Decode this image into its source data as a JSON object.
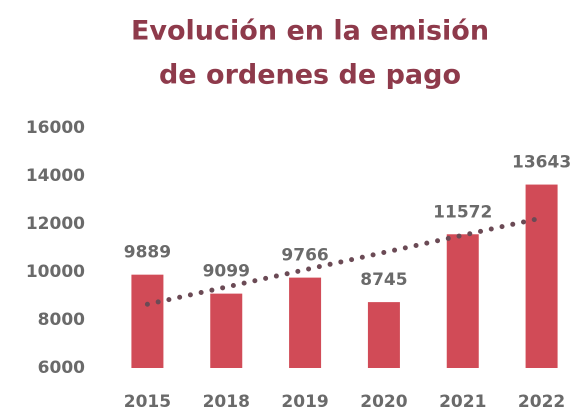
{
  "chart_data": {
    "type": "bar",
    "title": [
      "Evolución en la emisión",
      "de ordenes de pago"
    ],
    "categories": [
      "2015",
      "2018",
      "2019",
      "2020",
      "2021",
      "2022"
    ],
    "values": [
      9889,
      9099,
      9766,
      8745,
      11572,
      13643
    ],
    "color": "#d14b57",
    "ylim": [
      6000,
      16000
    ],
    "yticks": [
      6000,
      8000,
      10000,
      12000,
      14000,
      16000
    ],
    "grid": false,
    "trendline": true
  }
}
